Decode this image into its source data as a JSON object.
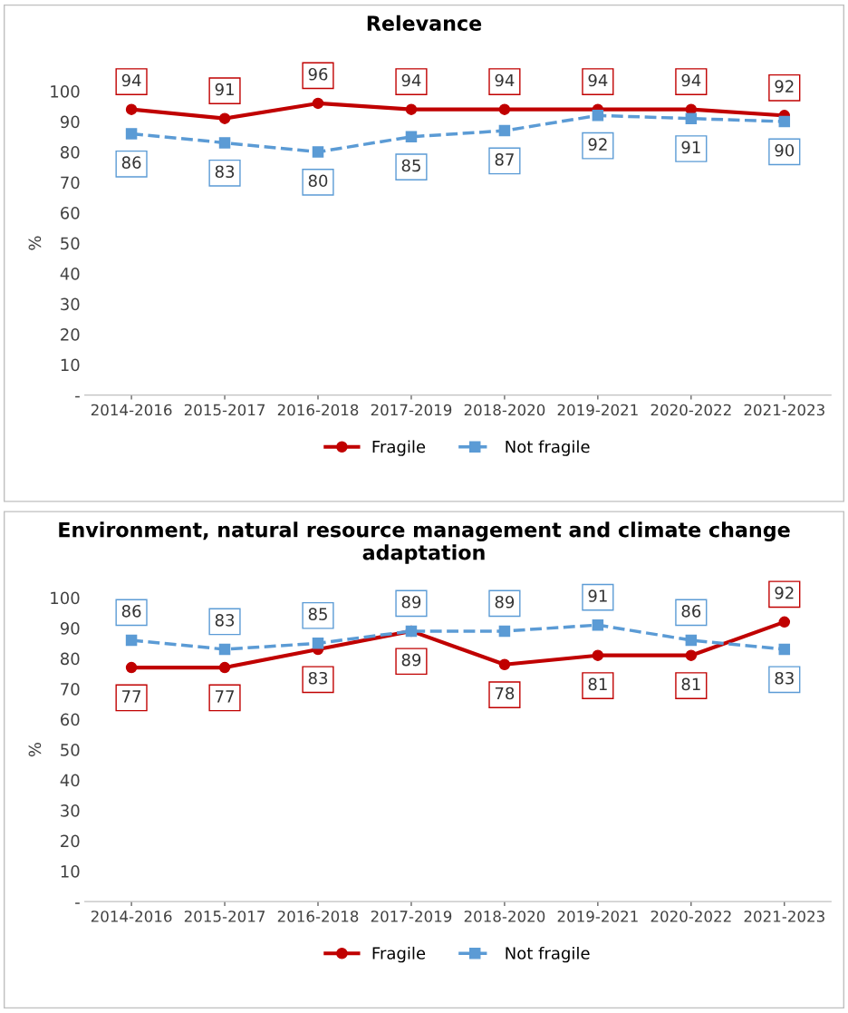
{
  "chart_data": [
    {
      "type": "line",
      "title": "Relevance",
      "ylabel": "%",
      "categories": [
        "2014-2016",
        "2015-2017",
        "2016-2018",
        "2017-2019",
        "2018-2020",
        "2019-2021",
        "2020-2022",
        "2021-2023"
      ],
      "series": [
        {
          "name": "Fragile",
          "color": "#c00000",
          "marker": "circle",
          "line_style": "solid",
          "values": [
            94,
            91,
            96,
            94,
            94,
            94,
            94,
            92
          ]
        },
        {
          "name": "Not fragile",
          "color": "#5b9bd5",
          "marker": "square",
          "line_style": "dashed",
          "values": [
            86,
            83,
            80,
            85,
            87,
            92,
            91,
            90
          ]
        }
      ],
      "ylim": [
        0,
        100
      ],
      "yticks": [
        {
          "value": 0,
          "label": "-"
        },
        10,
        20,
        30,
        40,
        50,
        60,
        70,
        80,
        90,
        100
      ],
      "grid": false,
      "legend": "bottom",
      "data_labels": true
    },
    {
      "type": "line",
      "title": "Environment, natural resource management and climate change adaptation",
      "ylabel": "%",
      "categories": [
        "2014-2016",
        "2015-2017",
        "2016-2018",
        "2017-2019",
        "2018-2020",
        "2019-2021",
        "2020-2022",
        "2021-2023"
      ],
      "series": [
        {
          "name": "Fragile",
          "color": "#c00000",
          "marker": "circle",
          "line_style": "solid",
          "values": [
            77,
            77,
            83,
            89,
            78,
            81,
            81,
            92
          ]
        },
        {
          "name": "Not fragile",
          "color": "#5b9bd5",
          "marker": "square",
          "line_style": "dashed",
          "values": [
            86,
            83,
            85,
            89,
            89,
            91,
            86,
            83
          ]
        }
      ],
      "ylim": [
        0,
        100
      ],
      "yticks": [
        {
          "value": 0,
          "label": "-"
        },
        10,
        20,
        30,
        40,
        50,
        60,
        70,
        80,
        90,
        100
      ],
      "grid": false,
      "legend": "bottom",
      "data_labels": true
    }
  ]
}
